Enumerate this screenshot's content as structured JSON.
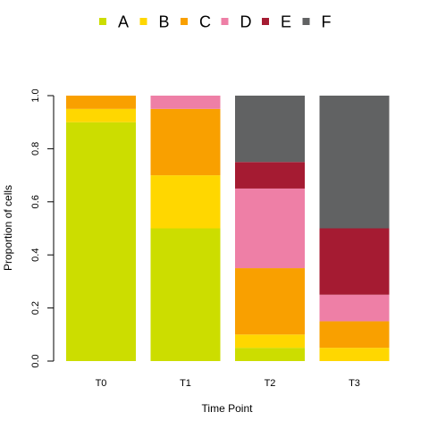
{
  "chart_data": {
    "type": "bar",
    "stacked": true,
    "categories": [
      "T0",
      "T1",
      "T2",
      "T3"
    ],
    "series": [
      {
        "name": "A",
        "color": "#CCDD00",
        "values": [
          0.9,
          0.5,
          0.05,
          0.0
        ]
      },
      {
        "name": "B",
        "color": "#FFD700",
        "values": [
          0.05,
          0.2,
          0.05,
          0.05
        ]
      },
      {
        "name": "C",
        "color": "#F9A000",
        "values": [
          0.05,
          0.25,
          0.25,
          0.1
        ]
      },
      {
        "name": "D",
        "color": "#EE7FA6",
        "values": [
          0.0,
          0.05,
          0.3,
          0.1
        ]
      },
      {
        "name": "E",
        "color": "#A51B32",
        "values": [
          0.0,
          0.0,
          0.1,
          0.25
        ]
      },
      {
        "name": "F",
        "color": "#616263",
        "values": [
          0.0,
          0.0,
          0.25,
          0.5
        ]
      }
    ],
    "xlabel": "Time Point",
    "ylabel": "Proportion of cells",
    "ylim": [
      0,
      1
    ],
    "yticks": [
      "0.0",
      "0.2",
      "0.4",
      "0.6",
      "0.8",
      "1.0"
    ],
    "legend_position": "top",
    "grid": false
  }
}
